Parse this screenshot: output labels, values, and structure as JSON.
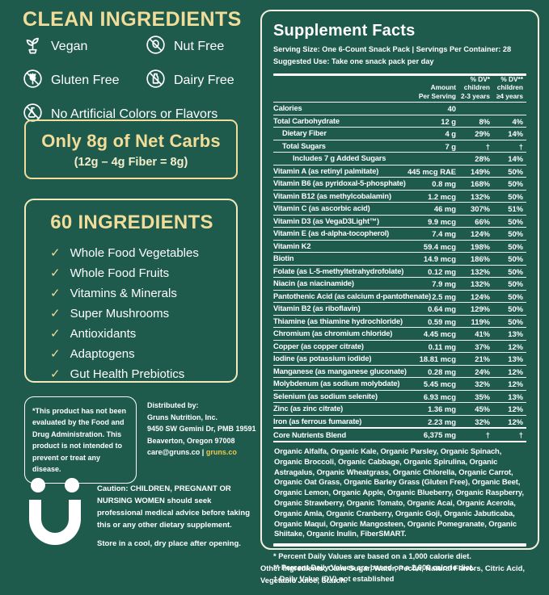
{
  "colors": {
    "background": "#1f5b4c",
    "accent_yellow": "#f1dd99",
    "link_gold": "#ecc94f",
    "text_white": "#ffffff"
  },
  "clean": {
    "title": "CLEAN INGREDIENTS",
    "badges": [
      {
        "icon": "vegan-icon",
        "label": "Vegan"
      },
      {
        "icon": "nut-free-icon",
        "label": "Nut Free"
      },
      {
        "icon": "gluten-free-icon",
        "label": "Gluten Free"
      },
      {
        "icon": "dairy-free-icon",
        "label": "Dairy Free"
      },
      {
        "icon": "no-artificial-icon",
        "label": "No Artificial Colors or Flavors"
      }
    ]
  },
  "net_carbs": {
    "title": "Only 8g of Net Carbs",
    "formula": "(12g – 4g Fiber = 8g)"
  },
  "ingredients_box": {
    "title": "60 INGREDIENTS",
    "check_glyph": "✓",
    "items": [
      "Whole Food Vegetables",
      "Whole Food Fruits",
      "Vitamins & Minerals",
      "Super Mushrooms",
      "Antioxidants",
      "Adaptogens",
      "Gut Health Prebiotics"
    ]
  },
  "disclaimer": "*This product has not been evaluated by the Food and Drug Administration. This product is not intended to prevent or treat any disease.",
  "distributor": {
    "heading": "Distributed by:",
    "lines": [
      "Gruns Nutrition, Inc.",
      "9450 SW Gemini Dr, PMB 19591",
      "Beaverton, Oregon 97008"
    ],
    "contact_prefix": "care@gruns.co | ",
    "site": "gruns.co"
  },
  "caution": "Caution: CHILDREN, PREGNANT OR NURSING WOMEN should seek professional medical advice before taking this or any other dietary supplement.",
  "storage": "Store in a cool, dry place after opening.",
  "facts": {
    "title": "Supplement Facts",
    "serving_line": "Serving Size: One 6-Count Snack Pack | Servings Per Container: 28",
    "use_line": "Suggested Use: Take one snack pack per day",
    "col_headers": [
      {
        "lines": [
          "Amount",
          "Per Serving"
        ]
      },
      {
        "lines": [
          "% DV*",
          "children",
          "2-3 years"
        ]
      },
      {
        "lines": [
          "% DV**",
          "children",
          "≥4 years"
        ]
      }
    ],
    "rows": [
      {
        "name": "Calories",
        "amount": "40",
        "dv1": "",
        "dv2": "",
        "indent": 0
      },
      {
        "name": "Total Carbohydrate",
        "amount": "12 g",
        "dv1": "8%",
        "dv2": "4%",
        "indent": 0
      },
      {
        "name": "Dietary Fiber",
        "amount": "4 g",
        "dv1": "29%",
        "dv2": "14%",
        "indent": 1
      },
      {
        "name": "Total Sugars",
        "amount": "7 g",
        "dv1": "†",
        "dv2": "†",
        "indent": 1
      },
      {
        "name": "Includes 7 g Added Sugars",
        "amount": "",
        "dv1": "28%",
        "dv2": "14%",
        "indent": 2
      },
      {
        "name": "Vitamin A (as retinyl palmitate)",
        "amount": "445 mcg RAE",
        "dv1": "149%",
        "dv2": "50%",
        "indent": 0
      },
      {
        "name": "Vitamin B6 (as pyridoxal-5-phosphate)",
        "amount": "0.8 mg",
        "dv1": "168%",
        "dv2": "50%",
        "indent": 0
      },
      {
        "name": "Vitamin B12 (as methylcobalamin)",
        "amount": "1.2 mcg",
        "dv1": "132%",
        "dv2": "50%",
        "indent": 0
      },
      {
        "name": "Vitamin C (as ascorbic acid)",
        "amount": "46 mg",
        "dv1": "307%",
        "dv2": "51%",
        "indent": 0
      },
      {
        "name": "Vitamin D3 (as VegaD3Light™)",
        "amount": "9.9 mcg",
        "dv1": "66%",
        "dv2": "50%",
        "indent": 0
      },
      {
        "name": "Vitamin E (as d-alpha-tocopherol)",
        "amount": "7.4 mg",
        "dv1": "124%",
        "dv2": "50%",
        "indent": 0
      },
      {
        "name": "Vitamin K2",
        "amount": "59.4 mcg",
        "dv1": "198%",
        "dv2": "50%",
        "indent": 0
      },
      {
        "name": "Biotin",
        "amount": "14.9 mcg",
        "dv1": "186%",
        "dv2": "50%",
        "indent": 0
      },
      {
        "name": "Folate (as L-5-methyltetrahydrofolate)",
        "amount": "0.12 mg",
        "dv1": "132%",
        "dv2": "50%",
        "indent": 0
      },
      {
        "name": "Niacin (as niacinamide)",
        "amount": "7.9 mg",
        "dv1": "132%",
        "dv2": "50%",
        "indent": 0
      },
      {
        "name": "Pantothenic Acid (as calcium d-pantothenate)",
        "amount": "2.5 mg",
        "dv1": "124%",
        "dv2": "50%",
        "indent": 0
      },
      {
        "name": "Vitamin B2 (as riboflavin)",
        "amount": "0.64 mg",
        "dv1": "129%",
        "dv2": "50%",
        "indent": 0
      },
      {
        "name": "Thiamine (as thiamine hydrochloride)",
        "amount": "0.59 mg",
        "dv1": "119%",
        "dv2": "50%",
        "indent": 0
      },
      {
        "name": "Chromium (as chromium chloride)",
        "amount": "4.45 mcg",
        "dv1": "41%",
        "dv2": "13%",
        "indent": 0
      },
      {
        "name": "Copper (as copper citrate)",
        "amount": "0.11 mg",
        "dv1": "37%",
        "dv2": "12%",
        "indent": 0
      },
      {
        "name": "Iodine (as potassium iodide)",
        "amount": "18.81 mcg",
        "dv1": "21%",
        "dv2": "13%",
        "indent": 0
      },
      {
        "name": "Manganese (as manganese gluconate)",
        "amount": "0.28 mg",
        "dv1": "24%",
        "dv2": "12%",
        "indent": 0
      },
      {
        "name": "Molybdenum (as sodium molybdate)",
        "amount": "5.45 mcg",
        "dv1": "32%",
        "dv2": "12%",
        "indent": 0
      },
      {
        "name": "Selenium (as sodium selenite)",
        "amount": "6.93 mcg",
        "dv1": "35%",
        "dv2": "13%",
        "indent": 0
      },
      {
        "name": "Zinc (as zinc citrate)",
        "amount": "1.36 mg",
        "dv1": "45%",
        "dv2": "12%",
        "indent": 0
      },
      {
        "name": "Iron (as ferrous fumarate)",
        "amount": "2.23 mg",
        "dv1": "32%",
        "dv2": "12%",
        "indent": 0
      },
      {
        "name": "Core Nutrients Blend",
        "amount": "6,375 mg",
        "dv1": "†",
        "dv2": "†",
        "indent": 0,
        "blend": true
      }
    ],
    "blend_ingredients": "Organic Alfalfa, Organic Kale, Organic Parsley, Organic Spinach, Organic Broccoli, Organic Cabbage, Organic Spirulina, Organic Astragalus, Organic Wheatgrass, Organic Chlorella, Organic Carrot, Organic Oat Grass, Organic Barley Grass (Gluten Free), Organic Beet, Organic Lemon, Organic Apple, Organic Blueberry, Organic Raspberry, Organic Strawberry, Organic Tomato, Organic Acai, Organic Acerola, Organic Amla, Organic Cranberry, Organic Goji, Organic Jabuticaba, Organic Maqui, Organic Mangosteen, Organic Pomegranate, Organic Shiitake, Organic Inulin, FiberSMART.",
    "footnotes": [
      "* Percent Daily Values are based on a 1,000 calorie diet.",
      "** Percent Daily Values are based on a 2,000 calorie diet.",
      "† Daily Value (DV) not established"
    ]
  },
  "other_ingredients": "Other Ingredients: Cane Sugar, Water, Pectin, Natural Flavors, Citric Acid, Vegetable Juice, Starch."
}
